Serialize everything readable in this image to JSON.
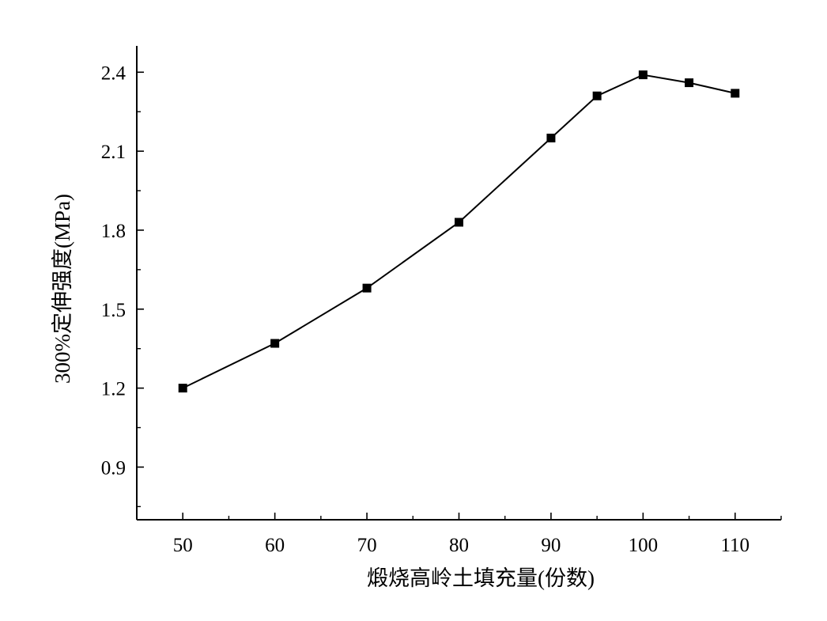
{
  "chart_data": {
    "type": "line",
    "title": "",
    "xlabel": "煅烧高岭土填充量(份数)",
    "ylabel": "300%定伸强度(MPa)",
    "xlim": [
      45,
      115
    ],
    "ylim": [
      0.7,
      2.5
    ],
    "xticks": [
      50,
      60,
      70,
      80,
      90,
      100,
      110
    ],
    "yticks": [
      0.9,
      1.2,
      1.5,
      1.8,
      2.1,
      2.4
    ],
    "xtick_labels": [
      "50",
      "60",
      "70",
      "80",
      "90",
      "100",
      "110"
    ],
    "ytick_labels": [
      "0.9",
      "1.2",
      "1.5",
      "1.8",
      "2.1",
      "2.4"
    ],
    "grid": false,
    "marker": "square",
    "series": [
      {
        "x": [
          50,
          60,
          70,
          80,
          90,
          95,
          100,
          105,
          110
        ],
        "y": [
          1.2,
          1.37,
          1.58,
          1.83,
          2.15,
          2.31,
          2.39,
          2.36,
          2.32
        ]
      }
    ]
  }
}
